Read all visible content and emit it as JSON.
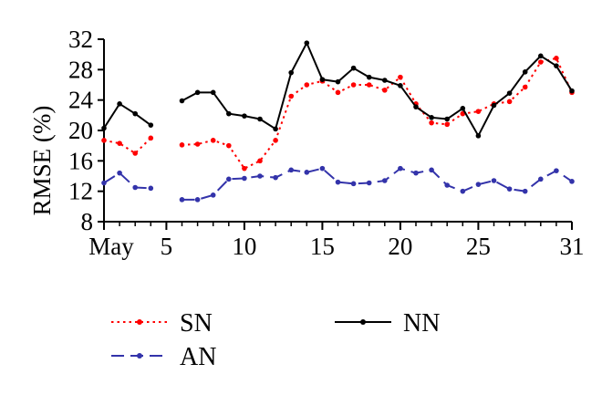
{
  "chart_data": {
    "type": "line",
    "title": "",
    "xlabel": "",
    "ylabel": "RMSE (%)",
    "xlim": [
      1,
      31
    ],
    "ylim": [
      8,
      32
    ],
    "x_ticks": [
      {
        "value": 1,
        "label": "May"
      },
      {
        "value": 5,
        "label": "5"
      },
      {
        "value": 10,
        "label": "10"
      },
      {
        "value": 15,
        "label": "15"
      },
      {
        "value": 20,
        "label": "20"
      },
      {
        "value": 25,
        "label": "25"
      },
      {
        "value": 31,
        "label": "31"
      }
    ],
    "y_ticks": [
      8,
      12,
      16,
      20,
      24,
      28,
      32
    ],
    "grid": false,
    "legend_position": "bottom",
    "series": [
      {
        "name": "SN",
        "color": "#ff0000",
        "line_style": "dotted",
        "segments": [
          {
            "x": [
              1,
              2,
              3,
              4
            ],
            "y": [
              18.7,
              18.3,
              17.0,
              19.0
            ]
          },
          {
            "x": [
              6,
              7,
              8,
              9,
              10,
              11,
              12,
              13,
              14,
              15,
              16,
              17,
              18,
              19,
              20,
              21,
              22,
              23,
              24,
              25,
              26,
              27,
              28,
              29,
              30,
              31
            ],
            "y": [
              18.1,
              18.2,
              18.7,
              18.0,
              15.0,
              16.0,
              18.7,
              24.5,
              26.0,
              26.5,
              25.0,
              26.0,
              26.0,
              25.3,
              27.0,
              23.5,
              21.0,
              20.8,
              22.2,
              22.5,
              23.5,
              23.8,
              25.7,
              29.0,
              29.5,
              25.0
            ]
          }
        ]
      },
      {
        "name": "NN",
        "color": "#000000",
        "line_style": "solid",
        "segments": [
          {
            "x": [
              1,
              2,
              3,
              4
            ],
            "y": [
              20.3,
              23.5,
              22.2,
              20.7
            ]
          },
          {
            "x": [
              6,
              7,
              8,
              9,
              10,
              11,
              12,
              13,
              14,
              15,
              16,
              17,
              18,
              19,
              20,
              21,
              22,
              23,
              24,
              25,
              26,
              27,
              28,
              29,
              30,
              31
            ],
            "y": [
              23.9,
              25.0,
              25.0,
              22.2,
              21.9,
              21.5,
              20.2,
              27.6,
              31.5,
              26.7,
              26.4,
              28.2,
              27.0,
              26.6,
              25.9,
              23.1,
              21.7,
              21.5,
              22.9,
              19.3,
              23.3,
              24.9,
              27.7,
              29.8,
              28.5,
              25.2
            ]
          }
        ]
      },
      {
        "name": "AN",
        "color": "#3333aa",
        "line_style": "dashed",
        "segments": [
          {
            "x": [
              1,
              2,
              3,
              4
            ],
            "y": [
              13.1,
              14.4,
              12.5,
              12.4
            ]
          },
          {
            "x": [
              6,
              7,
              8,
              9,
              10,
              11,
              12,
              13,
              14,
              15,
              16,
              17,
              18,
              19,
              20,
              21,
              22,
              23,
              24,
              25,
              26,
              27,
              28,
              29,
              30,
              31
            ],
            "y": [
              10.9,
              10.9,
              11.5,
              13.6,
              13.7,
              14.0,
              13.8,
              14.8,
              14.5,
              15.0,
              13.2,
              13.0,
              13.1,
              13.4,
              15.0,
              14.4,
              14.8,
              12.8,
              12.0,
              12.9,
              13.4,
              12.3,
              12.0,
              13.6,
              14.7,
              13.3
            ]
          }
        ]
      }
    ]
  }
}
